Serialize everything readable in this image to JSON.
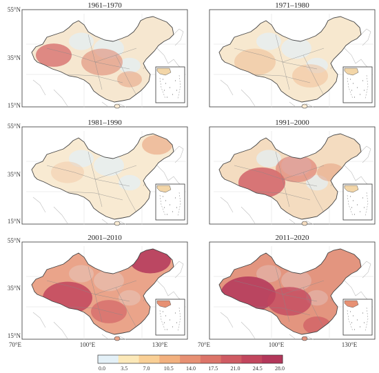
{
  "panels": [
    {
      "title": "1961–1970"
    },
    {
      "title": "1971–1980"
    },
    {
      "title": "1981–1990"
    },
    {
      "title": "1991–2000"
    },
    {
      "title": "2001–2010"
    },
    {
      "title": "2011–2020"
    }
  ],
  "lat_labels": [
    "55°N",
    "35°N",
    "15°N"
  ],
  "lon_labels": [
    "70°E",
    "100°E",
    "130°E"
  ],
  "colorbar": {
    "ticks": [
      "0.0",
      "3.5",
      "7.0",
      "10.5",
      "14.0",
      "17.5",
      "21.0",
      "24.5",
      "28.0"
    ],
    "colors": [
      "#e3f0f7",
      "#fbe8b8",
      "#f9cf95",
      "#f2b07e",
      "#e79073",
      "#dc7469",
      "#cf5b63",
      "#c2465d",
      "#b3375a"
    ]
  },
  "colors": {
    "low": "#e3f0f7",
    "mid": "#f5c48f",
    "high": "#c2465d",
    "border": "#444444",
    "graticule": "#cccccc"
  }
}
